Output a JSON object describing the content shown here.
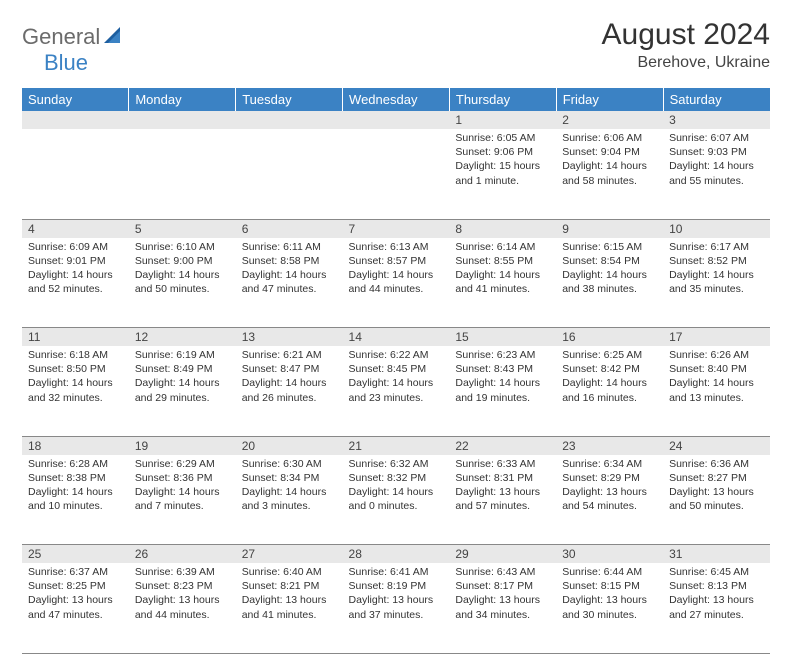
{
  "brand": {
    "part1": "General",
    "part2": "Blue"
  },
  "title": "August 2024",
  "location": "Berehove, Ukraine",
  "colors": {
    "header_bg": "#3b82c4",
    "daynum_bg": "#e8e8e8",
    "border": "#888888",
    "logo_gray": "#6b6b6b",
    "logo_blue": "#3b82c4"
  },
  "day_headers": [
    "Sunday",
    "Monday",
    "Tuesday",
    "Wednesday",
    "Thursday",
    "Friday",
    "Saturday"
  ],
  "weeks": [
    {
      "nums": [
        "",
        "",
        "",
        "",
        "1",
        "2",
        "3"
      ],
      "cells": [
        null,
        null,
        null,
        null,
        {
          "sunrise": "Sunrise: 6:05 AM",
          "sunset": "Sunset: 9:06 PM",
          "daylight1": "Daylight: 15 hours",
          "daylight2": "and 1 minute."
        },
        {
          "sunrise": "Sunrise: 6:06 AM",
          "sunset": "Sunset: 9:04 PM",
          "daylight1": "Daylight: 14 hours",
          "daylight2": "and 58 minutes."
        },
        {
          "sunrise": "Sunrise: 6:07 AM",
          "sunset": "Sunset: 9:03 PM",
          "daylight1": "Daylight: 14 hours",
          "daylight2": "and 55 minutes."
        }
      ]
    },
    {
      "nums": [
        "4",
        "5",
        "6",
        "7",
        "8",
        "9",
        "10"
      ],
      "cells": [
        {
          "sunrise": "Sunrise: 6:09 AM",
          "sunset": "Sunset: 9:01 PM",
          "daylight1": "Daylight: 14 hours",
          "daylight2": "and 52 minutes."
        },
        {
          "sunrise": "Sunrise: 6:10 AM",
          "sunset": "Sunset: 9:00 PM",
          "daylight1": "Daylight: 14 hours",
          "daylight2": "and 50 minutes."
        },
        {
          "sunrise": "Sunrise: 6:11 AM",
          "sunset": "Sunset: 8:58 PM",
          "daylight1": "Daylight: 14 hours",
          "daylight2": "and 47 minutes."
        },
        {
          "sunrise": "Sunrise: 6:13 AM",
          "sunset": "Sunset: 8:57 PM",
          "daylight1": "Daylight: 14 hours",
          "daylight2": "and 44 minutes."
        },
        {
          "sunrise": "Sunrise: 6:14 AM",
          "sunset": "Sunset: 8:55 PM",
          "daylight1": "Daylight: 14 hours",
          "daylight2": "and 41 minutes."
        },
        {
          "sunrise": "Sunrise: 6:15 AM",
          "sunset": "Sunset: 8:54 PM",
          "daylight1": "Daylight: 14 hours",
          "daylight2": "and 38 minutes."
        },
        {
          "sunrise": "Sunrise: 6:17 AM",
          "sunset": "Sunset: 8:52 PM",
          "daylight1": "Daylight: 14 hours",
          "daylight2": "and 35 minutes."
        }
      ]
    },
    {
      "nums": [
        "11",
        "12",
        "13",
        "14",
        "15",
        "16",
        "17"
      ],
      "cells": [
        {
          "sunrise": "Sunrise: 6:18 AM",
          "sunset": "Sunset: 8:50 PM",
          "daylight1": "Daylight: 14 hours",
          "daylight2": "and 32 minutes."
        },
        {
          "sunrise": "Sunrise: 6:19 AM",
          "sunset": "Sunset: 8:49 PM",
          "daylight1": "Daylight: 14 hours",
          "daylight2": "and 29 minutes."
        },
        {
          "sunrise": "Sunrise: 6:21 AM",
          "sunset": "Sunset: 8:47 PM",
          "daylight1": "Daylight: 14 hours",
          "daylight2": "and 26 minutes."
        },
        {
          "sunrise": "Sunrise: 6:22 AM",
          "sunset": "Sunset: 8:45 PM",
          "daylight1": "Daylight: 14 hours",
          "daylight2": "and 23 minutes."
        },
        {
          "sunrise": "Sunrise: 6:23 AM",
          "sunset": "Sunset: 8:43 PM",
          "daylight1": "Daylight: 14 hours",
          "daylight2": "and 19 minutes."
        },
        {
          "sunrise": "Sunrise: 6:25 AM",
          "sunset": "Sunset: 8:42 PM",
          "daylight1": "Daylight: 14 hours",
          "daylight2": "and 16 minutes."
        },
        {
          "sunrise": "Sunrise: 6:26 AM",
          "sunset": "Sunset: 8:40 PM",
          "daylight1": "Daylight: 14 hours",
          "daylight2": "and 13 minutes."
        }
      ]
    },
    {
      "nums": [
        "18",
        "19",
        "20",
        "21",
        "22",
        "23",
        "24"
      ],
      "cells": [
        {
          "sunrise": "Sunrise: 6:28 AM",
          "sunset": "Sunset: 8:38 PM",
          "daylight1": "Daylight: 14 hours",
          "daylight2": "and 10 minutes."
        },
        {
          "sunrise": "Sunrise: 6:29 AM",
          "sunset": "Sunset: 8:36 PM",
          "daylight1": "Daylight: 14 hours",
          "daylight2": "and 7 minutes."
        },
        {
          "sunrise": "Sunrise: 6:30 AM",
          "sunset": "Sunset: 8:34 PM",
          "daylight1": "Daylight: 14 hours",
          "daylight2": "and 3 minutes."
        },
        {
          "sunrise": "Sunrise: 6:32 AM",
          "sunset": "Sunset: 8:32 PM",
          "daylight1": "Daylight: 14 hours",
          "daylight2": "and 0 minutes."
        },
        {
          "sunrise": "Sunrise: 6:33 AM",
          "sunset": "Sunset: 8:31 PM",
          "daylight1": "Daylight: 13 hours",
          "daylight2": "and 57 minutes."
        },
        {
          "sunrise": "Sunrise: 6:34 AM",
          "sunset": "Sunset: 8:29 PM",
          "daylight1": "Daylight: 13 hours",
          "daylight2": "and 54 minutes."
        },
        {
          "sunrise": "Sunrise: 6:36 AM",
          "sunset": "Sunset: 8:27 PM",
          "daylight1": "Daylight: 13 hours",
          "daylight2": "and 50 minutes."
        }
      ]
    },
    {
      "nums": [
        "25",
        "26",
        "27",
        "28",
        "29",
        "30",
        "31"
      ],
      "cells": [
        {
          "sunrise": "Sunrise: 6:37 AM",
          "sunset": "Sunset: 8:25 PM",
          "daylight1": "Daylight: 13 hours",
          "daylight2": "and 47 minutes."
        },
        {
          "sunrise": "Sunrise: 6:39 AM",
          "sunset": "Sunset: 8:23 PM",
          "daylight1": "Daylight: 13 hours",
          "daylight2": "and 44 minutes."
        },
        {
          "sunrise": "Sunrise: 6:40 AM",
          "sunset": "Sunset: 8:21 PM",
          "daylight1": "Daylight: 13 hours",
          "daylight2": "and 41 minutes."
        },
        {
          "sunrise": "Sunrise: 6:41 AM",
          "sunset": "Sunset: 8:19 PM",
          "daylight1": "Daylight: 13 hours",
          "daylight2": "and 37 minutes."
        },
        {
          "sunrise": "Sunrise: 6:43 AM",
          "sunset": "Sunset: 8:17 PM",
          "daylight1": "Daylight: 13 hours",
          "daylight2": "and 34 minutes."
        },
        {
          "sunrise": "Sunrise: 6:44 AM",
          "sunset": "Sunset: 8:15 PM",
          "daylight1": "Daylight: 13 hours",
          "daylight2": "and 30 minutes."
        },
        {
          "sunrise": "Sunrise: 6:45 AM",
          "sunset": "Sunset: 8:13 PM",
          "daylight1": "Daylight: 13 hours",
          "daylight2": "and 27 minutes."
        }
      ]
    }
  ]
}
